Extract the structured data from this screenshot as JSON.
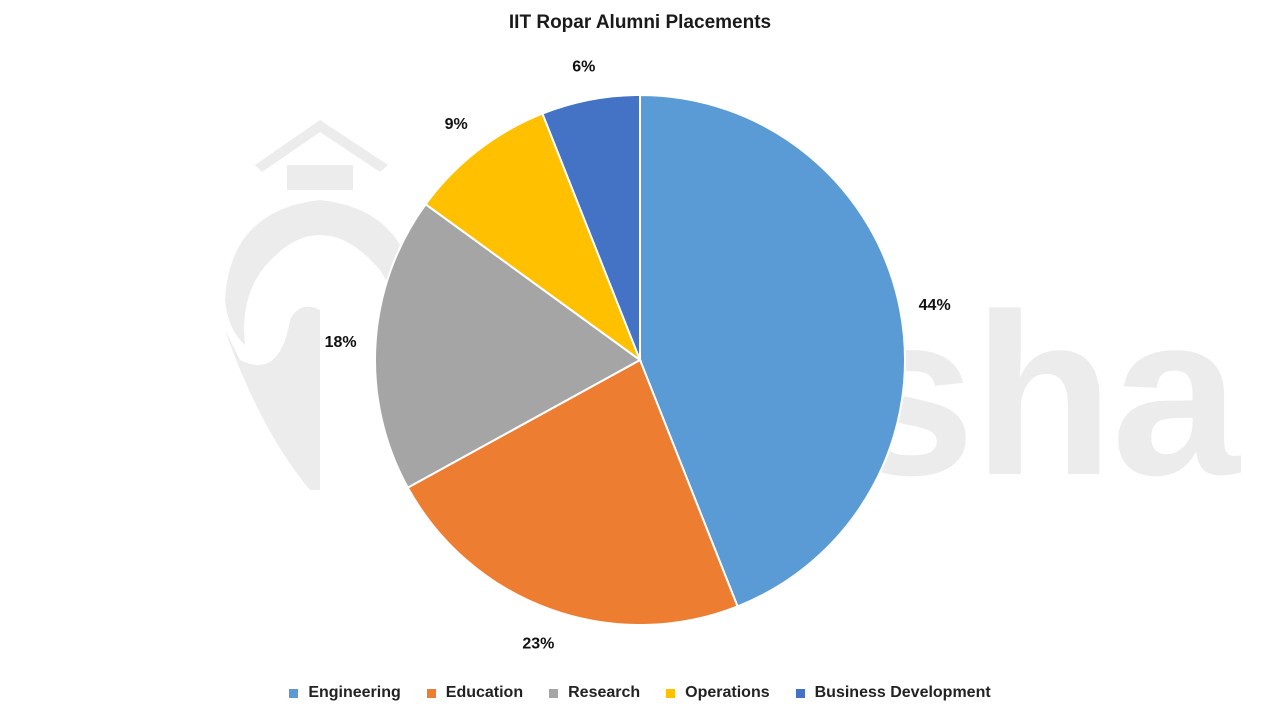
{
  "chart_data": {
    "type": "pie",
    "title": "IIT Ropar Alumni Placements",
    "categories": [
      "Engineering",
      "Education",
      "Research",
      "Operations",
      "Business Development"
    ],
    "values": [
      44,
      23,
      18,
      9,
      6
    ],
    "labels": [
      "44%",
      "23%",
      "18%",
      "9%",
      "6%"
    ],
    "colors": [
      "#5b9bd5",
      "#ed7d31",
      "#a5a5a5",
      "#ffc000",
      "#4472c4"
    ],
    "legend": "bottom"
  },
  "watermark": {
    "word": "shiksha",
    "icon": "graduation-cap-icon"
  }
}
